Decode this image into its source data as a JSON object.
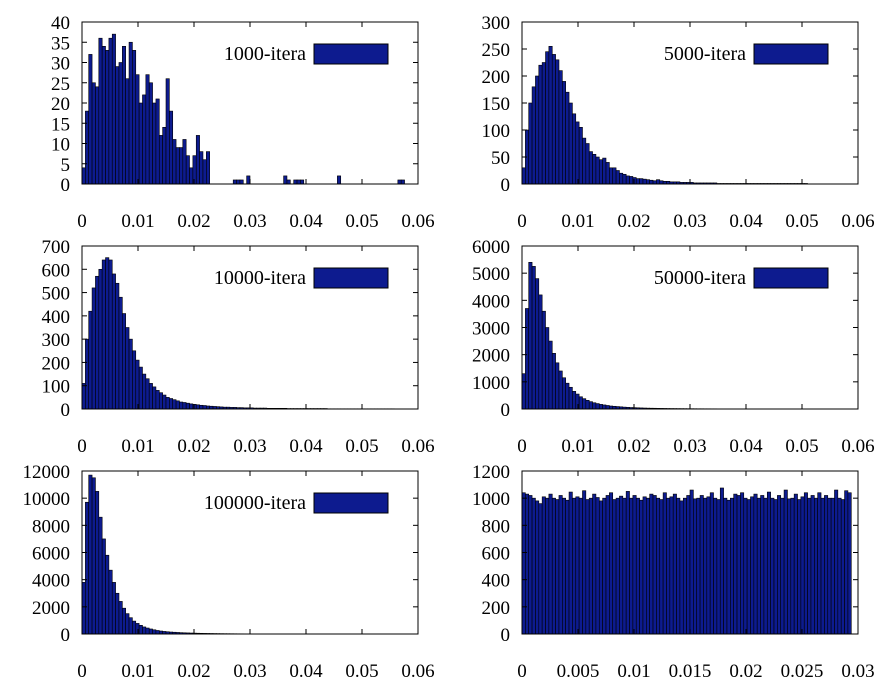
{
  "colors": {
    "bar_fill": "#0d1b8f",
    "bar_stroke": "#000000",
    "axis": "#000000"
  },
  "chart_data": [
    {
      "type": "bar",
      "title": "",
      "xlabel": "",
      "ylabel": "",
      "legend": "1000-itera",
      "legend_position": "top-right",
      "xlim": [
        0,
        0.06
      ],
      "ylim": [
        0,
        40
      ],
      "xticks": [
        "0",
        "0.01",
        "0.02",
        "0.03",
        "0.04",
        "0.05",
        "0.06"
      ],
      "yticks": [
        "0",
        "5",
        "10",
        "15",
        "20",
        "25",
        "30",
        "35",
        "40"
      ],
      "bin_width": 0.0006,
      "values": [
        4,
        18,
        32,
        25,
        24,
        36,
        34,
        33,
        36,
        37,
        29,
        30,
        34,
        26,
        35,
        33,
        27,
        20,
        22,
        27,
        25,
        20,
        21,
        12,
        14,
        26,
        18,
        11,
        9,
        9,
        11,
        7,
        4,
        7,
        12,
        8,
        6,
        8,
        0,
        0,
        0,
        0,
        0,
        0,
        0,
        1,
        1,
        1,
        0,
        2,
        0,
        0,
        0,
        0,
        0,
        0,
        0,
        0,
        0,
        0,
        2,
        1,
        0,
        1,
        1,
        1,
        0,
        0,
        0,
        0,
        0,
        0,
        0,
        0,
        0,
        0,
        2,
        0,
        0,
        0,
        0,
        0,
        0,
        0,
        0,
        0,
        0,
        0,
        0,
        0,
        0,
        0,
        0,
        0,
        1,
        1
      ]
    },
    {
      "type": "bar",
      "title": "",
      "xlabel": "",
      "ylabel": "",
      "legend": "5000-itera",
      "legend_position": "top-right",
      "xlim": [
        0,
        0.06
      ],
      "ylim": [
        0,
        300
      ],
      "xticks": [
        "0",
        "0.01",
        "0.02",
        "0.03",
        "0.04",
        "0.05",
        "0.06"
      ],
      "yticks": [
        "0",
        "50",
        "100",
        "150",
        "200",
        "250",
        "300"
      ],
      "bin_width": 0.0006,
      "values": [
        30,
        100,
        150,
        180,
        200,
        220,
        225,
        245,
        255,
        240,
        230,
        210,
        190,
        170,
        150,
        130,
        115,
        105,
        85,
        75,
        60,
        55,
        50,
        45,
        48,
        40,
        30,
        30,
        25,
        20,
        18,
        15,
        14,
        12,
        10,
        10,
        9,
        8,
        7,
        6,
        8,
        6,
        5,
        5,
        4,
        4,
        4,
        3,
        3,
        3,
        3,
        2,
        2,
        2,
        2,
        2,
        2,
        2,
        1,
        1,
        1,
        1,
        1,
        1,
        1,
        1,
        1,
        1,
        1,
        1,
        1,
        1,
        1,
        1,
        1,
        1,
        1,
        1,
        1,
        1,
        1,
        1,
        1,
        1,
        1,
        0,
        0,
        0,
        0,
        0,
        0,
        0,
        0
      ]
    },
    {
      "type": "bar",
      "title": "",
      "xlabel": "",
      "ylabel": "",
      "legend": "10000-itera",
      "legend_position": "top-right",
      "xlim": [
        0,
        0.06
      ],
      "ylim": [
        0,
        700
      ],
      "xticks": [
        "0",
        "0.01",
        "0.02",
        "0.03",
        "0.04",
        "0.05",
        "0.06"
      ],
      "yticks": [
        "0",
        "100",
        "200",
        "300",
        "400",
        "500",
        "600",
        "700"
      ],
      "bin_width": 0.0006,
      "values": [
        110,
        300,
        420,
        520,
        570,
        600,
        640,
        650,
        640,
        580,
        540,
        480,
        410,
        350,
        300,
        250,
        210,
        180,
        150,
        130,
        110,
        95,
        80,
        70,
        60,
        50,
        45,
        40,
        35,
        30,
        28,
        25,
        22,
        20,
        18,
        16,
        15,
        13,
        12,
        11,
        10,
        9,
        8,
        8,
        7,
        7,
        6,
        6,
        5,
        5,
        5,
        4,
        4,
        4,
        4,
        3,
        3,
        3,
        3,
        3,
        3,
        2,
        2,
        2,
        2,
        2,
        2,
        2,
        2,
        2,
        2,
        2,
        2,
        1,
        1,
        1,
        1,
        1,
        1,
        1,
        1,
        1,
        1,
        1,
        1,
        1,
        1,
        1,
        1,
        1,
        1,
        1,
        1
      ]
    },
    {
      "type": "bar",
      "title": "",
      "xlabel": "",
      "ylabel": "",
      "legend": "50000-itera",
      "legend_position": "top-right",
      "xlim": [
        0,
        0.06
      ],
      "ylim": [
        0,
        6000
      ],
      "xticks": [
        "0",
        "0.01",
        "0.02",
        "0.03",
        "0.04",
        "0.05",
        "0.06"
      ],
      "yticks": [
        "0",
        "1000",
        "2000",
        "3000",
        "4000",
        "5000",
        "6000"
      ],
      "bin_width": 0.0006,
      "values": [
        1300,
        3700,
        5400,
        5250,
        4800,
        4200,
        3600,
        3000,
        2500,
        2050,
        1700,
        1400,
        1150,
        950,
        800,
        650,
        550,
        450,
        380,
        320,
        270,
        230,
        200,
        170,
        150,
        130,
        110,
        100,
        90,
        80,
        70,
        62,
        55,
        50,
        45,
        40,
        36,
        32,
        30,
        28,
        25,
        23,
        21,
        19,
        18,
        17,
        16,
        15,
        14,
        13,
        12,
        11,
        10,
        10,
        9,
        9,
        8,
        8,
        7,
        7,
        6,
        6,
        6,
        5,
        5,
        5,
        5,
        4,
        4,
        4,
        4,
        3,
        3,
        3,
        3,
        3,
        3,
        2,
        2,
        2,
        2,
        2,
        2,
        2,
        2,
        2,
        1,
        1,
        1,
        1,
        1,
        1,
        1
      ]
    },
    {
      "type": "bar",
      "title": "",
      "xlabel": "",
      "ylabel": "",
      "legend": "100000-itera",
      "legend_position": "top-right",
      "xlim": [
        0,
        0.06
      ],
      "ylim": [
        0,
        12000
      ],
      "xticks": [
        "0",
        "0.01",
        "0.02",
        "0.03",
        "0.04",
        "0.05",
        "0.06"
      ],
      "yticks": [
        "0",
        "2000",
        "4000",
        "6000",
        "8000",
        "10000",
        "12000"
      ],
      "bin_width": 0.0006,
      "values": [
        3800,
        9700,
        11700,
        11500,
        10500,
        8600,
        7000,
        5800,
        4700,
        3800,
        3000,
        2400,
        1900,
        1500,
        1200,
        950,
        780,
        640,
        520,
        440,
        370,
        310,
        260,
        220,
        190,
        165,
        145,
        130,
        115,
        100,
        90,
        80,
        72,
        65,
        58,
        52,
        47,
        43,
        39,
        35,
        32,
        29,
        26,
        24,
        22,
        20,
        18,
        16,
        15,
        14,
        13,
        12,
        11,
        10,
        9,
        9,
        8,
        8,
        7,
        7,
        6,
        6,
        5,
        5,
        5,
        4,
        4,
        4,
        4,
        3,
        3,
        3,
        3,
        3,
        3,
        2,
        2,
        2,
        2,
        2,
        2,
        2,
        2,
        2,
        2,
        2,
        1,
        1,
        1,
        1,
        1,
        1,
        1
      ]
    },
    {
      "type": "bar",
      "title": "",
      "xlabel": "",
      "ylabel": "",
      "legend": "",
      "xlim": [
        0,
        0.03
      ],
      "ylim": [
        0,
        1200
      ],
      "xticks": [
        "0",
        "0.005",
        "0.01",
        "0.015",
        "0.02",
        "0.025",
        "0.03"
      ],
      "yticks": [
        "0",
        "200",
        "400",
        "600",
        "800",
        "1000",
        "1200"
      ],
      "bin_width": 0.0003,
      "values": [
        1040,
        1030,
        1020,
        1000,
        980,
        960,
        1010,
        1000,
        1030,
        1000,
        990,
        1020,
        1000,
        985,
        1045,
        1000,
        1010,
        1000,
        1055,
        990,
        1000,
        1030,
        1005,
        980,
        1000,
        1020,
        1040,
        990,
        1000,
        1015,
        1000,
        1050,
        1000,
        1020,
        1000,
        985,
        1010,
        1000,
        1030,
        1020,
        1000,
        990,
        1040,
        1000,
        1010,
        1030,
        1000,
        980,
        1000,
        1020,
        1060,
        995,
        1000,
        1020,
        1000,
        1010,
        1040,
        1000,
        990,
        1075,
        1000,
        985,
        1000,
        1030,
        1020,
        1040,
        1000,
        990,
        1010,
        1030,
        1000,
        1020,
        1000,
        1045,
        1000,
        990,
        1020,
        1000,
        1060,
        995,
        1000,
        1030,
        990,
        1010,
        1040,
        1000,
        1020,
        1000,
        1040,
        1000,
        1020,
        1000,
        1000,
        1060,
        1000,
        990,
        1055,
        1040
      ]
    }
  ]
}
